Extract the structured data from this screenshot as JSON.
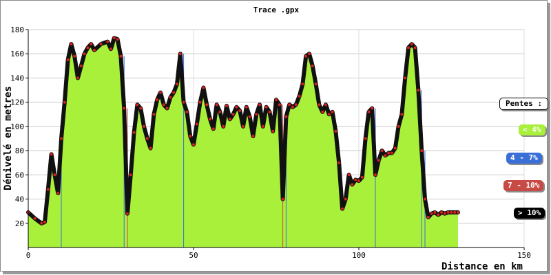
{
  "chart_data": {
    "type": "area",
    "title": "Trace .gpx",
    "xlabel": "Distance en km",
    "ylabel": "Dénivelé en metres",
    "xlim": [
      0,
      150
    ],
    "ylim": [
      0,
      180
    ],
    "xticks": [
      "0",
      "50",
      "100",
      "150"
    ],
    "yticks": [
      "20",
      "40",
      "60",
      "80",
      "100",
      "120",
      "140",
      "160",
      "180"
    ],
    "grid": true,
    "legend_placement": "right",
    "legend": {
      "title": "Pentes :",
      "entries": [
        {
          "label": "< 4%",
          "color": "#a8f03a"
        },
        {
          "label": "4 - 7%",
          "color": "#3a6fd8"
        },
        {
          "label": "7 - 10%",
          "color": "#c84a44"
        },
        {
          "label": "> 10%",
          "color": "#000000"
        }
      ]
    },
    "series": [
      {
        "x": [
          0,
          2,
          4,
          5,
          6,
          7,
          8,
          9,
          10,
          11,
          12,
          13,
          14,
          15,
          16,
          17,
          18,
          19,
          20,
          22,
          24,
          25,
          26,
          27,
          28,
          29,
          30,
          31,
          32,
          33,
          34,
          35,
          36,
          37,
          38,
          39,
          40,
          41,
          42,
          43,
          44,
          45,
          46,
          47,
          48,
          49,
          50,
          51,
          52,
          53,
          54,
          55,
          56,
          57,
          58,
          59,
          60,
          61,
          62,
          63,
          64,
          65,
          66,
          67,
          68,
          69,
          70,
          71,
          72,
          73,
          74,
          75,
          76,
          77,
          78,
          79,
          80,
          81,
          82,
          83,
          84,
          85,
          86,
          87,
          88,
          89,
          90,
          91,
          92,
          93,
          94,
          95,
          96,
          97,
          98,
          99,
          100,
          101,
          102,
          103,
          104,
          105,
          106,
          107,
          108,
          109,
          110,
          111,
          112,
          113,
          114,
          115,
          116,
          117,
          118,
          119,
          120,
          121,
          122,
          123,
          124,
          125,
          126,
          127,
          128,
          129,
          130
        ],
        "y": [
          29,
          24,
          20,
          21,
          48,
          77,
          60,
          45,
          90,
          120,
          155,
          168,
          158,
          140,
          150,
          160,
          165,
          168,
          163,
          168,
          170,
          164,
          173,
          172,
          158,
          115,
          28,
          60,
          95,
          118,
          115,
          100,
          90,
          82,
          110,
          122,
          128,
          118,
          115,
          124,
          128,
          135,
          160,
          120,
          112,
          92,
          85,
          102,
          120,
          132,
          118,
          106,
          98,
          118,
          112,
          100,
          117,
          106,
          110,
          116,
          113,
          100,
          116,
          108,
          92,
          110,
          118,
          100,
          116,
          112,
          96,
          122,
          118,
          40,
          108,
          118,
          116,
          118,
          125,
          135,
          158,
          160,
          150,
          135,
          118,
          112,
          118,
          110,
          112,
          96,
          70,
          32,
          40,
          60,
          52,
          56,
          55,
          58,
          90,
          112,
          115,
          60,
          72,
          80,
          76,
          78,
          78,
          82,
          100,
          110,
          140,
          165,
          168,
          165,
          130,
          80,
          40,
          25,
          28,
          29,
          27,
          29,
          28,
          29,
          29,
          29,
          29
        ],
        "color": "#a8f03a"
      }
    ]
  }
}
